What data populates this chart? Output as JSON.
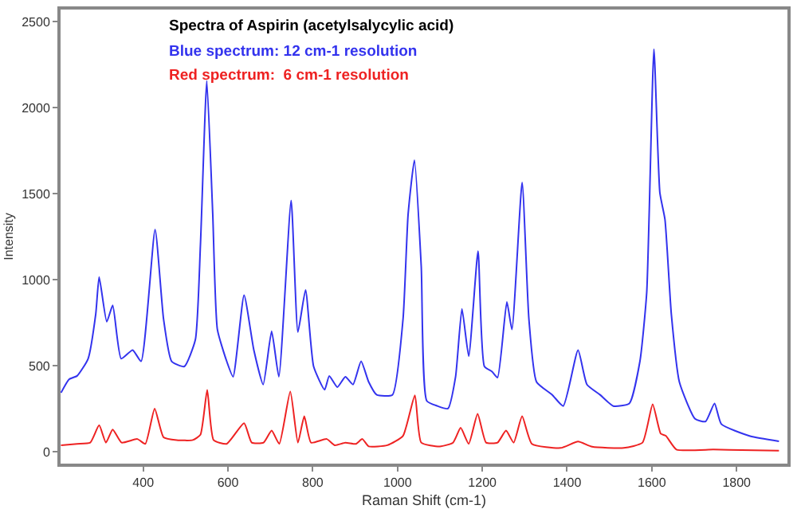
{
  "chart_data": {
    "type": "line",
    "title": "Spectra of Aspirin (acetylsalycylic acid)",
    "annotations": [
      "Blue spectrum: 12 cm-1 resolution",
      "Red spectrum:  6 cm-1 resolution"
    ],
    "xlabel": "Raman Shift (cm-1)",
    "ylabel": "Intensity",
    "xlim": [
      205,
      1920
    ],
    "ylim": [
      -70,
      2570
    ],
    "xticks": [
      400,
      600,
      800,
      1000,
      1200,
      1400,
      1600,
      1800
    ],
    "yticks": [
      0,
      500,
      1000,
      1500,
      2000,
      2500
    ],
    "marker": "none",
    "line_style": "solid",
    "series": [
      {
        "color": "#3333ee",
        "x": [
          206,
          225,
          244,
          270,
          288,
          296,
          314,
          328,
          348,
          375,
          395,
          428,
          448,
          467,
          497,
          523,
          535,
          550,
          564,
          575,
          597,
          612,
          638,
          661,
          683,
          703,
          720,
          749,
          765,
          783,
          802,
          828,
          839,
          858,
          877,
          895,
          914,
          932,
          951,
          988,
          1013,
          1025,
          1040,
          1056,
          1069,
          1094,
          1119,
          1137,
          1152,
          1168,
          1190,
          1205,
          1223,
          1236,
          1258,
          1270,
          1294,
          1310,
          1328,
          1365,
          1391,
          1426,
          1447,
          1478,
          1509,
          1547,
          1572,
          1588,
          1605,
          1619,
          1631,
          1646,
          1665,
          1702,
          1727,
          1748,
          1764,
          1832,
          1900
        ],
        "values": [
          342,
          420,
          440,
          540,
          800,
          1015,
          755,
          850,
          540,
          590,
          525,
          1290,
          770,
          525,
          495,
          650,
          1200,
          2155,
          1385,
          710,
          525,
          435,
          910,
          590,
          390,
          700,
          435,
          1460,
          695,
          940,
          495,
          360,
          440,
          375,
          435,
          390,
          525,
          405,
          330,
          330,
          770,
          1380,
          1695,
          1075,
          295,
          265,
          250,
          435,
          830,
          555,
          1165,
          495,
          465,
          430,
          870,
          710,
          1565,
          770,
          405,
          330,
          265,
          590,
          390,
          330,
          265,
          280,
          525,
          925,
          2340,
          1505,
          1350,
          800,
          405,
          190,
          175,
          280,
          160,
          90,
          60
        ]
      },
      {
        "color": "#ee2222",
        "x": [
          206,
          244,
          275,
          296,
          312,
          328,
          349,
          386,
          405,
          427,
          448,
          479,
          517,
          535,
          551,
          566,
          597,
          638,
          656,
          684,
          703,
          721,
          747,
          765,
          780,
          796,
          833,
          852,
          877,
          902,
          917,
          932,
          976,
          1013,
          1041,
          1056,
          1100,
          1131,
          1149,
          1168,
          1189,
          1209,
          1236,
          1256,
          1274,
          1294,
          1317,
          1385,
          1426,
          1459,
          1534,
          1578,
          1602,
          1621,
          1633,
          1658,
          1745,
          1782,
          1900
        ],
        "values": [
          37,
          45,
          52,
          153,
          52,
          128,
          52,
          73,
          45,
          250,
          83,
          67,
          67,
          98,
          358,
          67,
          45,
          165,
          52,
          52,
          122,
          45,
          349,
          52,
          205,
          52,
          73,
          37,
          52,
          45,
          73,
          30,
          37,
          92,
          327,
          52,
          30,
          52,
          138,
          45,
          220,
          52,
          52,
          122,
          52,
          205,
          45,
          21,
          58,
          28,
          21,
          52,
          275,
          104,
          92,
          12,
          12,
          10,
          5
        ]
      }
    ]
  }
}
